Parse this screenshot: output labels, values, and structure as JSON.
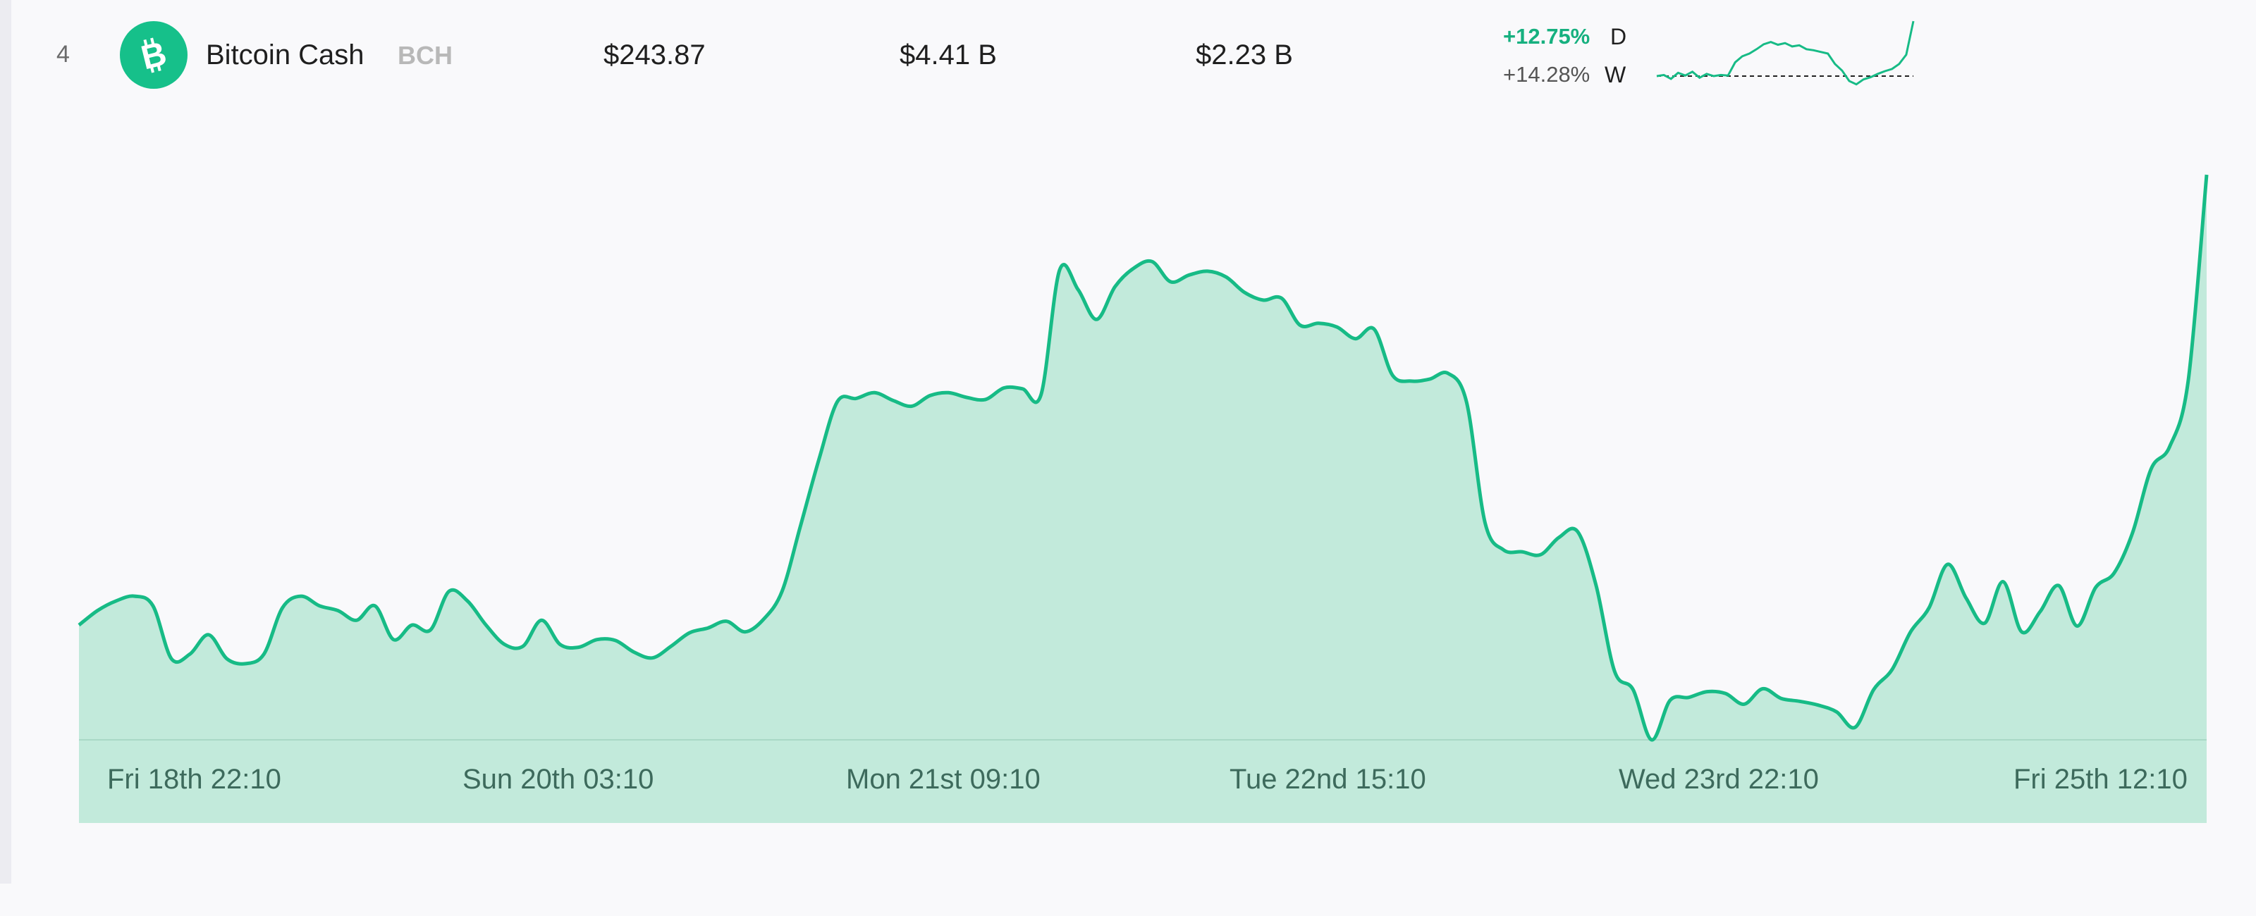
{
  "row": {
    "rank": "4",
    "name": "Bitcoin Cash",
    "symbol": "BCH",
    "price": "$243.87",
    "market_cap": "$4.41 B",
    "volume": "$2.23 B",
    "change_day": "+12.75%",
    "change_day_label": "D",
    "change_week": "+14.28%",
    "change_week_label": "W",
    "logo_icon": "bitcoin-cash-logo-icon",
    "accent_color": "#16c08a"
  },
  "chart_data": {
    "type": "area",
    "x_tick_labels": [
      "Fri 18th 22:10",
      "Sun 20th 03:10",
      "Mon 21st 09:10",
      "Tue 22nd 15:10",
      "Wed 23rd 22:10",
      "Fri 25th 12:10"
    ],
    "series": [
      {
        "values": [
          216,
          217.5,
          218.5,
          219,
          218,
          212.5,
          213,
          215,
          212.5,
          212,
          213,
          217.8,
          219,
          218,
          217.5,
          216.5,
          218,
          214.5,
          216,
          215.5,
          219.5,
          218.5,
          216,
          214,
          213.8,
          216.5,
          214,
          213.7,
          214.5,
          214.4,
          213.2,
          212.6,
          213.8,
          215.2,
          215.7,
          216.4,
          215.3,
          216.6,
          219.5,
          226.3,
          233.2,
          239.2,
          239.5,
          240.1,
          239.3,
          238.7,
          239.8,
          240.1,
          239.6,
          239.4,
          240.6,
          240.5,
          239.9,
          252.8,
          250.8,
          247.7,
          251.1,
          253,
          253.7,
          251.6,
          252.3,
          252.7,
          252.1,
          250.5,
          249.7,
          249.9,
          247.1,
          247.3,
          246.9,
          245.7,
          246.7,
          241.9,
          241.3,
          241.5,
          242.1,
          239.1,
          226.6,
          223.8,
          223.6,
          223.3,
          225.1,
          225.7,
          220.1,
          211.2,
          209.3,
          204.1,
          208.2,
          208.5,
          209.1,
          208.9,
          207.8,
          209.4,
          208.4,
          208.1,
          207.7,
          207,
          205.4,
          209.3,
          211.4,
          215.3,
          217.8,
          222.3,
          218.8,
          216.2,
          220.5,
          215.3,
          217.4,
          220.1,
          215.9,
          219.9,
          221.4,
          225.6,
          232.2,
          234.5,
          241.3,
          262.7
        ]
      }
    ],
    "colors": {
      "line": "#17bb86",
      "fill": "#c2eadb"
    },
    "grid": false,
    "legend": "none"
  },
  "sparkline": {
    "baseline_label": "",
    "values": [
      0,
      0.2,
      -0.5,
      0.6,
      0.1,
      0.8,
      -0.3,
      0.4,
      0,
      0.2,
      0.1,
      2.5,
      3.6,
      4.1,
      4.9,
      5.8,
      6.2,
      5.7,
      6.0,
      5.4,
      5.6,
      4.9,
      4.7,
      4.4,
      4.1,
      2.2,
      1.0,
      -0.9,
      -1.5,
      -0.6,
      -0.2,
      0.4,
      0.9,
      1.3,
      2.2,
      3.9,
      10.0
    ]
  }
}
